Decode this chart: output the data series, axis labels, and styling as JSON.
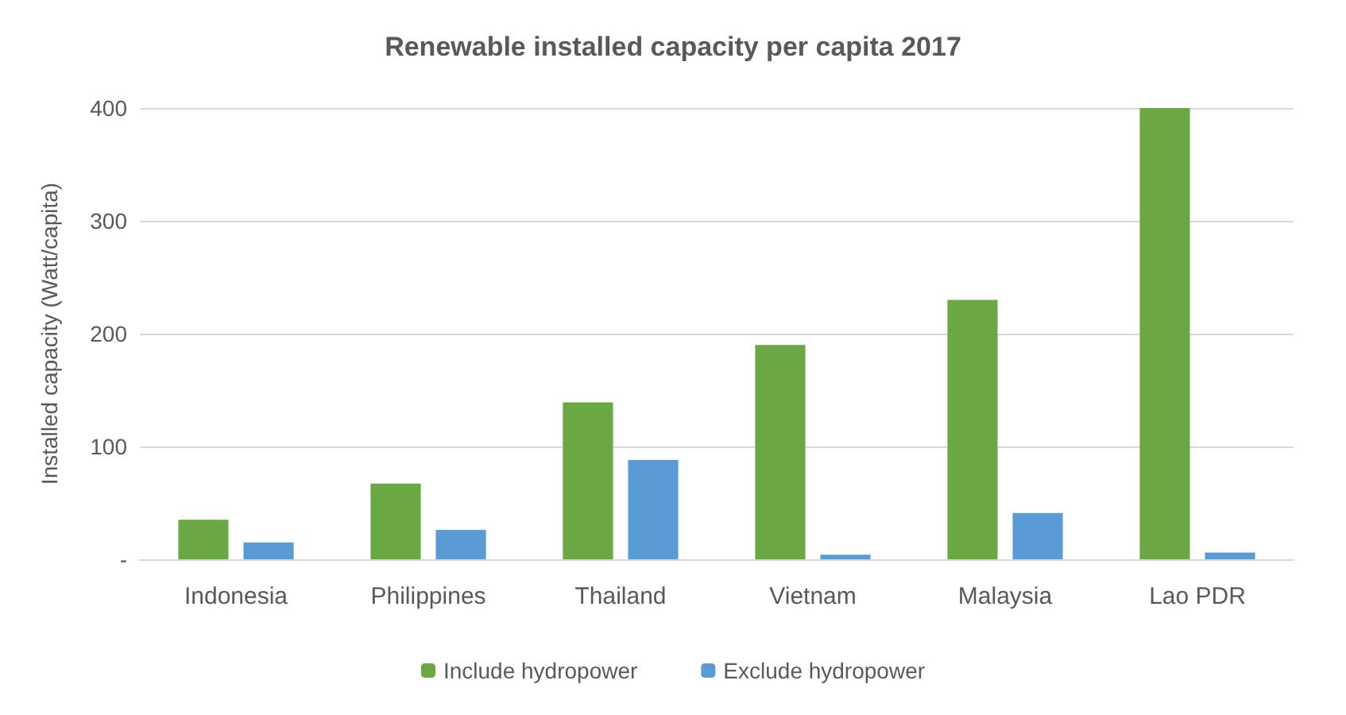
{
  "chart_data": {
    "type": "bar",
    "title": "Renewable installed capacity per capita 2017",
    "ylabel": "Installed capacity (Watt/capita)",
    "categories": [
      "Indonesia",
      "Philippines",
      "Thailand",
      "Vietnam",
      "Malaysia",
      "Lao PDR"
    ],
    "series": [
      {
        "name": "Include hydropower",
        "color": "#6aa843",
        "values": [
          35,
          67,
          139,
          190,
          230,
          400
        ]
      },
      {
        "name": "Exclude hydropower",
        "color": "#5b9bd5",
        "values": [
          15,
          26,
          88,
          4,
          41,
          6
        ]
      }
    ],
    "ylim": [
      0,
      400
    ],
    "yticks": [
      {
        "value": 0,
        "label": "-"
      },
      100,
      200,
      300,
      400
    ],
    "grid": "y",
    "legend": "bottom"
  }
}
